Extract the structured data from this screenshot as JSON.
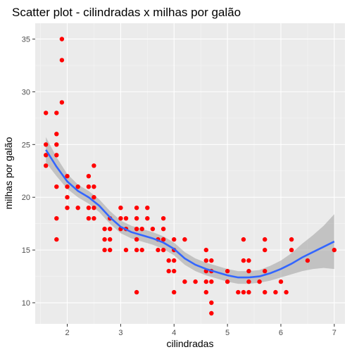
{
  "chart_data": {
    "type": "scatter",
    "title": "Scatter plot - cilindradas x milhas por galão",
    "xlabel": "cilindradas",
    "ylabel": "milhas por galão",
    "xlim": [
      1.4,
      7.2
    ],
    "ylim": [
      8.0,
      36.5
    ],
    "x_ticks": [
      2,
      3,
      4,
      5,
      6,
      7
    ],
    "y_ticks": [
      10,
      15,
      20,
      25,
      30,
      35
    ],
    "grid": true,
    "point_color": "#ff0000",
    "smooth_color": "#3366ff",
    "ribbon_color": "#999999",
    "panel_color": "#ebebeb",
    "points": [
      [
        1.6,
        28
      ],
      [
        1.6,
        25
      ],
      [
        1.6,
        24
      ],
      [
        1.6,
        23
      ],
      [
        1.8,
        28
      ],
      [
        1.8,
        26
      ],
      [
        1.8,
        25
      ],
      [
        1.8,
        24
      ],
      [
        1.8,
        21
      ],
      [
        1.8,
        18
      ],
      [
        1.8,
        16
      ],
      [
        1.9,
        35
      ],
      [
        1.9,
        33
      ],
      [
        1.9,
        29
      ],
      [
        2.0,
        22
      ],
      [
        2.0,
        21
      ],
      [
        2.0,
        20
      ],
      [
        2.0,
        19
      ],
      [
        2.2,
        21
      ],
      [
        2.2,
        19
      ],
      [
        2.4,
        22
      ],
      [
        2.4,
        21
      ],
      [
        2.4,
        19
      ],
      [
        2.4,
        18
      ],
      [
        2.5,
        23
      ],
      [
        2.5,
        21
      ],
      [
        2.5,
        20
      ],
      [
        2.5,
        19
      ],
      [
        2.5,
        18
      ],
      [
        2.7,
        17
      ],
      [
        2.7,
        16
      ],
      [
        2.7,
        15
      ],
      [
        2.8,
        18
      ],
      [
        2.8,
        17
      ],
      [
        2.8,
        16
      ],
      [
        2.8,
        15
      ],
      [
        3.0,
        19
      ],
      [
        3.0,
        18
      ],
      [
        3.0,
        17
      ],
      [
        3.1,
        18
      ],
      [
        3.1,
        17
      ],
      [
        3.1,
        15
      ],
      [
        3.3,
        19
      ],
      [
        3.3,
        18
      ],
      [
        3.3,
        17
      ],
      [
        3.3,
        16
      ],
      [
        3.3,
        15
      ],
      [
        3.3,
        11
      ],
      [
        3.4,
        17
      ],
      [
        3.4,
        15
      ],
      [
        3.5,
        19
      ],
      [
        3.5,
        18
      ],
      [
        3.6,
        17
      ],
      [
        3.7,
        16
      ],
      [
        3.7,
        15
      ],
      [
        3.8,
        18
      ],
      [
        3.8,
        17
      ],
      [
        3.8,
        16
      ],
      [
        3.8,
        15
      ],
      [
        3.9,
        14
      ],
      [
        3.9,
        13
      ],
      [
        4.0,
        16
      ],
      [
        4.0,
        15
      ],
      [
        4.0,
        14
      ],
      [
        4.0,
        13
      ],
      [
        4.0,
        11
      ],
      [
        4.2,
        16
      ],
      [
        4.2,
        12
      ],
      [
        4.4,
        12
      ],
      [
        4.6,
        15
      ],
      [
        4.6,
        14
      ],
      [
        4.6,
        13
      ],
      [
        4.6,
        12
      ],
      [
        4.6,
        11
      ],
      [
        4.7,
        14
      ],
      [
        4.7,
        13
      ],
      [
        4.7,
        12
      ],
      [
        4.7,
        10
      ],
      [
        4.7,
        9
      ],
      [
        5.0,
        13
      ],
      [
        5.0,
        12
      ],
      [
        5.2,
        11
      ],
      [
        5.3,
        16
      ],
      [
        5.3,
        14
      ],
      [
        5.3,
        11
      ],
      [
        5.4,
        14
      ],
      [
        5.4,
        13
      ],
      [
        5.4,
        12
      ],
      [
        5.4,
        11
      ],
      [
        5.6,
        12
      ],
      [
        5.7,
        16
      ],
      [
        5.7,
        15
      ],
      [
        5.7,
        13
      ],
      [
        5.7,
        11
      ],
      [
        5.9,
        11
      ],
      [
        6.0,
        12
      ],
      [
        6.1,
        11
      ],
      [
        6.2,
        16
      ],
      [
        6.2,
        15
      ],
      [
        6.5,
        14
      ],
      [
        7.0,
        15
      ]
    ],
    "smooth": [
      [
        1.6,
        24.5
      ],
      [
        1.8,
        22.9
      ],
      [
        2.0,
        21.5
      ],
      [
        2.2,
        20.6
      ],
      [
        2.4,
        20.0
      ],
      [
        2.6,
        19.2
      ],
      [
        2.8,
        18.1
      ],
      [
        3.0,
        17.2
      ],
      [
        3.2,
        16.7
      ],
      [
        3.4,
        16.4
      ],
      [
        3.6,
        16.1
      ],
      [
        3.8,
        15.7
      ],
      [
        4.0,
        15.1
      ],
      [
        4.2,
        14.2
      ],
      [
        4.4,
        13.6
      ],
      [
        4.6,
        13.2
      ],
      [
        4.8,
        12.9
      ],
      [
        5.0,
        12.6
      ],
      [
        5.2,
        12.4
      ],
      [
        5.4,
        12.4
      ],
      [
        5.6,
        12.5
      ],
      [
        5.8,
        12.8
      ],
      [
        6.0,
        13.2
      ],
      [
        6.2,
        13.7
      ],
      [
        6.4,
        14.3
      ],
      [
        6.6,
        14.8
      ],
      [
        6.8,
        15.3
      ],
      [
        7.0,
        15.8
      ]
    ],
    "ribbon_halfwidth": [
      1.2,
      0.9,
      0.7,
      0.6,
      0.6,
      0.6,
      0.6,
      0.6,
      0.6,
      0.6,
      0.6,
      0.6,
      0.6,
      0.6,
      0.6,
      0.6,
      0.6,
      0.6,
      0.6,
      0.6,
      0.6,
      0.7,
      0.8,
      1.0,
      1.3,
      1.6,
      2.0,
      2.6
    ]
  }
}
